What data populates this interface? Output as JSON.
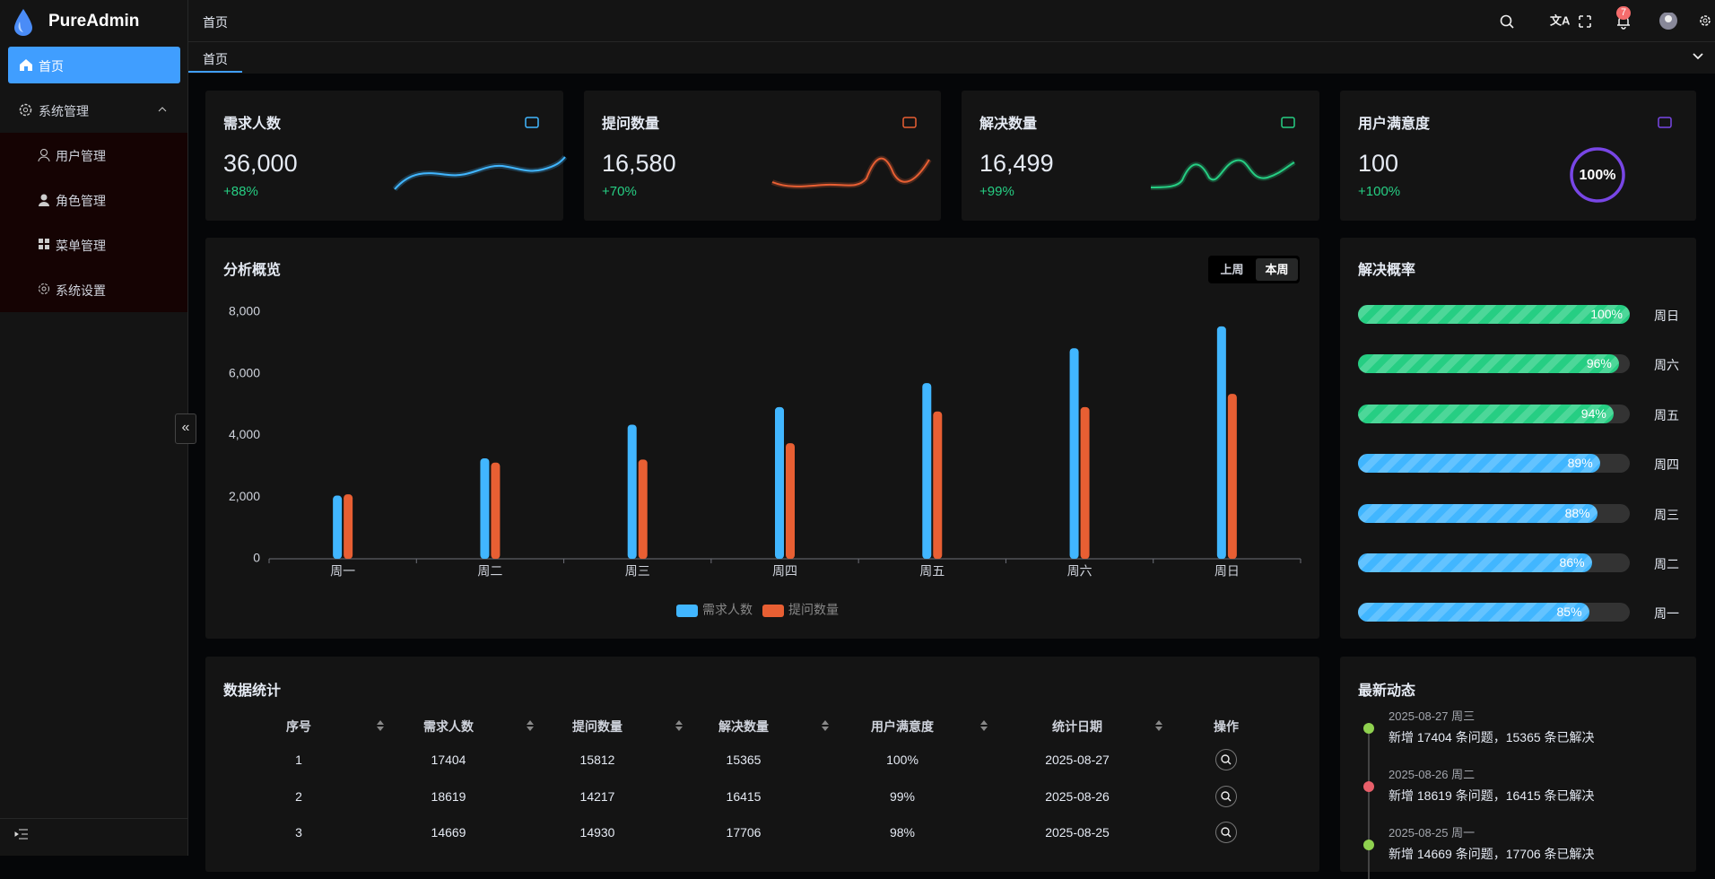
{
  "sidebar": {
    "logo": "PureAdmin",
    "menu": [
      "首页",
      "系统管理",
      "用户管理",
      "角色管理",
      "菜单管理",
      "系统设置"
    ]
  },
  "header": {
    "breadcrumb": "首页",
    "notifications": "7"
  },
  "tabs": [
    "首页"
  ],
  "cards": [
    {
      "title": "需求人数",
      "value": "36,000",
      "change": "+88%",
      "color": "#41b6ff"
    },
    {
      "title": "提问数量",
      "value": "16,580",
      "change": "+70%",
      "color": "#e85f33"
    },
    {
      "title": "解决数量",
      "value": "16,499",
      "change": "+99%",
      "color": "#26ce83"
    },
    {
      "title": "用户满意度",
      "value": "100",
      "change": "+100%",
      "color": "#7846e5",
      "ring": "100%"
    }
  ],
  "chart_toggle": [
    "上周",
    "本周"
  ],
  "chart_data": {
    "type": "bar",
    "title": "分析概览",
    "categories": [
      "周一",
      "周二",
      "周三",
      "周四",
      "周五",
      "周六",
      "周日"
    ],
    "series": [
      {
        "name": "需求人数",
        "color": "#41b6ff",
        "values": [
          2050,
          3260,
          4350,
          4920,
          5700,
          6830,
          7540
        ]
      },
      {
        "name": "提问数量",
        "color": "#e85f33",
        "values": [
          2090,
          3120,
          3220,
          3750,
          4780,
          4920,
          5350
        ]
      }
    ],
    "ylim": [
      0,
      8000
    ],
    "yticks": [
      0,
      {
        "value": 2000,
        "label": "2,000"
      },
      {
        "value": 4000,
        "label": "4,000"
      },
      {
        "value": 6000,
        "label": "6,000"
      },
      {
        "value": 8000,
        "label": "8,000"
      }
    ],
    "legend": "bottom"
  },
  "progress": {
    "title": "解决概率",
    "items": [
      {
        "day": "周日",
        "value": 100,
        "value_label": "100%",
        "color": "#26ce83"
      },
      {
        "day": "周六",
        "value": 96,
        "value_label": "96%",
        "color": "#26ce83"
      },
      {
        "day": "周五",
        "value": 94,
        "value_label": "94%",
        "color": "#26ce83"
      },
      {
        "day": "周四",
        "value": 89,
        "value_label": "89%",
        "color": "#41b6ff"
      },
      {
        "day": "周三",
        "value": 88,
        "value_label": "88%",
        "color": "#41b6ff"
      },
      {
        "day": "周二",
        "value": 86,
        "value_label": "86%",
        "color": "#41b6ff"
      },
      {
        "day": "周一",
        "value": 85,
        "value_label": "85%",
        "color": "#41b6ff"
      }
    ]
  },
  "table": {
    "title": "数据统计",
    "columns": [
      "序号",
      "需求人数",
      "提问数量",
      "解决数量",
      "用户满意度",
      "统计日期",
      "操作"
    ],
    "rows": [
      [
        1,
        17404,
        15812,
        15365,
        "100%",
        "2025-08-27"
      ],
      [
        2,
        18619,
        14217,
        16415,
        "99%",
        "2025-08-26"
      ],
      [
        3,
        14669,
        14930,
        17706,
        "98%",
        "2025-08-25"
      ]
    ]
  },
  "timeline": {
    "title": "最新动态",
    "items": [
      {
        "date": "2025-08-27 周三",
        "text": "新增 17404 条问题，15365 条已解决",
        "color": "#8fd14f"
      },
      {
        "date": "2025-08-26 周二",
        "text": "新增 18619 条问题，16415 条已解决",
        "color": "#e85f6a"
      },
      {
        "date": "2025-08-25 周一",
        "text": "新增 14669 条问题，17706 条已解决",
        "color": "#8fd14f"
      }
    ]
  }
}
